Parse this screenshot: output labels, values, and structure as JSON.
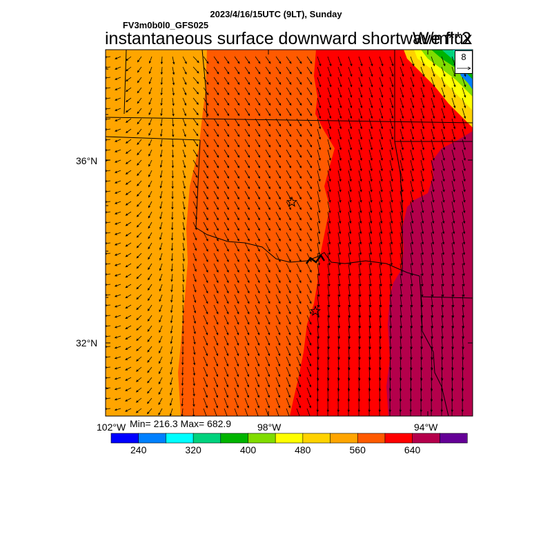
{
  "header": {
    "line1": "2023/4/16/15UTC (9LT), Sunday",
    "line2": "FV3m0b0l0_GFS025",
    "title": "instantaneous surface downward shortwave flux",
    "units": "W/m**2"
  },
  "stats": {
    "text": "Min= 216.3 Max= 682.9",
    "min": 216.3,
    "max": 682.9
  },
  "reference_vector": {
    "value": "8"
  },
  "axes": {
    "lat_labels": [
      "36°N",
      "32°N"
    ],
    "lon_labels": [
      "102°W",
      "98°W",
      "94°W"
    ]
  },
  "colorbar": {
    "colors": [
      "#0000ff",
      "#0080ff",
      "#00ffff",
      "#00d27d",
      "#00b400",
      "#80dc00",
      "#ffff00",
      "#ffd200",
      "#ffa500",
      "#ff5a00",
      "#ff0000",
      "#b4004b",
      "#640096"
    ],
    "tick_labels": [
      "240",
      "320",
      "400",
      "480",
      "560",
      "640"
    ]
  },
  "markers": [
    {
      "name": "star-oklahoma-city"
    },
    {
      "name": "star-dallas"
    }
  ]
}
